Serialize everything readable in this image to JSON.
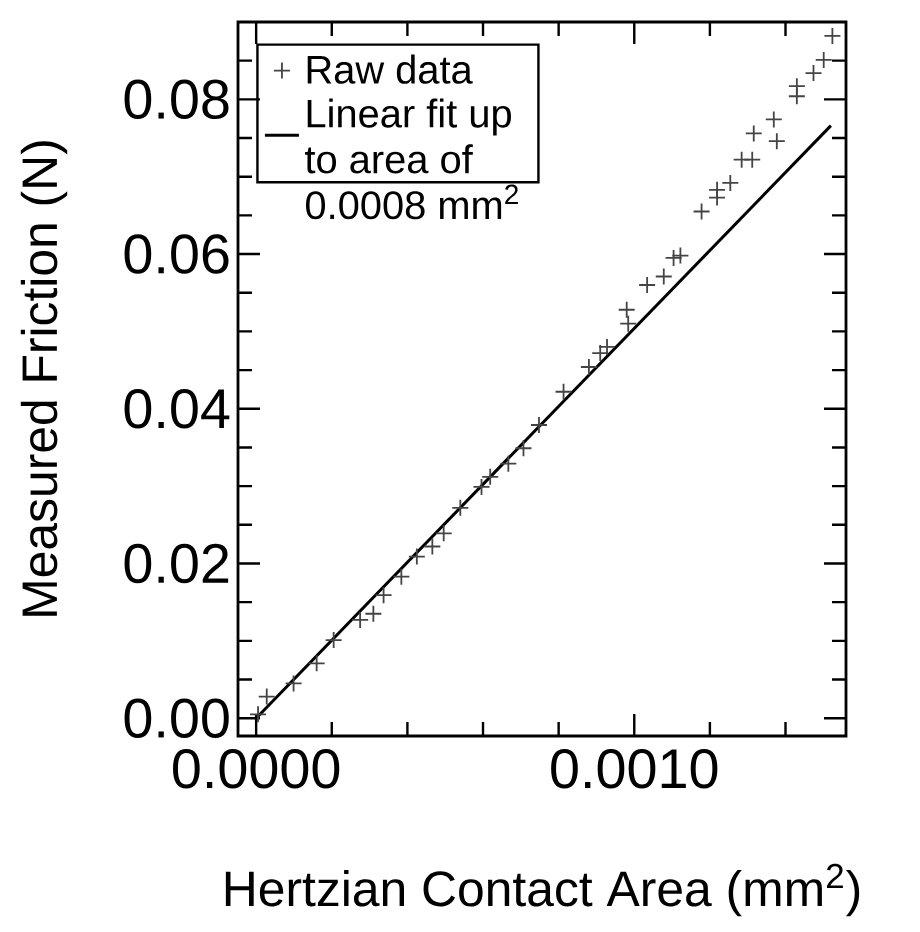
{
  "chart_data": {
    "type": "scatter",
    "xlabel": "Hertzian Contact Area (mm$^{2}$)",
    "ylabel": "Measured Friction (N)",
    "xlim": [
      -4.8e-05,
      0.00156
    ],
    "ylim": [
      -0.0023,
      0.09
    ],
    "xticks": [
      {
        "value": 0,
        "label": "0.0000"
      },
      {
        "value": 0.0002,
        "label": null
      },
      {
        "value": 0.0004,
        "label": null
      },
      {
        "value": 0.0006,
        "label": null
      },
      {
        "value": 0.0008,
        "label": null
      },
      {
        "value": 0.001,
        "label": "0.0010"
      },
      {
        "value": 0.0012,
        "label": null
      },
      {
        "value": 0.0014,
        "label": null
      }
    ],
    "yticks": [
      {
        "value": 0,
        "label": "0.00"
      },
      {
        "value": 0.005,
        "label": null
      },
      {
        "value": 0.01,
        "label": null
      },
      {
        "value": 0.015,
        "label": null
      },
      {
        "value": 0.02,
        "label": "0.02"
      },
      {
        "value": 0.025,
        "label": null
      },
      {
        "value": 0.03,
        "label": null
      },
      {
        "value": 0.035,
        "label": null
      },
      {
        "value": 0.04,
        "label": "0.04"
      },
      {
        "value": 0.045,
        "label": null
      },
      {
        "value": 0.05,
        "label": null
      },
      {
        "value": 0.055,
        "label": null
      },
      {
        "value": 0.06,
        "label": "0.06"
      },
      {
        "value": 0.065,
        "label": null
      },
      {
        "value": 0.07,
        "label": null
      },
      {
        "value": 0.075,
        "label": null
      },
      {
        "value": 0.08,
        "label": "0.08"
      },
      {
        "value": 0.085,
        "label": null
      }
    ],
    "legend": "top left",
    "grid": false,
    "series": [
      {
        "name": "Raw data",
        "marker": "cross",
        "color": "#444444",
        "x": [
          5e-06,
          2.8e-05,
          9.9e-05,
          0.00016,
          0.000205,
          0.000275,
          0.00031,
          0.000337,
          0.000384,
          0.000425,
          0.000466,
          0.000496,
          0.00054,
          0.000596,
          0.000619,
          0.000667,
          0.000707,
          0.000748,
          0.000813,
          0.00088,
          0.00091,
          0.000928,
          0.00098,
          0.000984,
          0.001034,
          0.001078,
          0.001104,
          0.001122,
          0.001178,
          0.001219,
          0.001219,
          0.001254,
          0.001284,
          0.001312,
          0.001316,
          0.001369,
          0.001377,
          0.00143,
          0.00143,
          0.001474,
          0.001501,
          0.001524
        ],
        "values": [
          0.0005,
          0.0028,
          0.0045,
          0.0071,
          0.0101,
          0.0127,
          0.0135,
          0.0159,
          0.0183,
          0.0209,
          0.0222,
          0.0239,
          0.0272,
          0.0299,
          0.0312,
          0.0329,
          0.0349,
          0.0379,
          0.0422,
          0.0454,
          0.0472,
          0.048,
          0.0528,
          0.051,
          0.056,
          0.0571,
          0.0595,
          0.0598,
          0.0655,
          0.0673,
          0.0683,
          0.0692,
          0.0722,
          0.0722,
          0.0756,
          0.0774,
          0.0746,
          0.0804,
          0.0817,
          0.0834,
          0.0851,
          0.0882
        ]
      },
      {
        "name": "Linear fit up to area of 0.0008 mm$^{2}$",
        "type": "line",
        "marker": "none",
        "line_style": "solid",
        "color": "#000000",
        "x": [
          0,
          0.00152
        ],
        "values": [
          0,
          0.0766
        ]
      }
    ]
  }
}
